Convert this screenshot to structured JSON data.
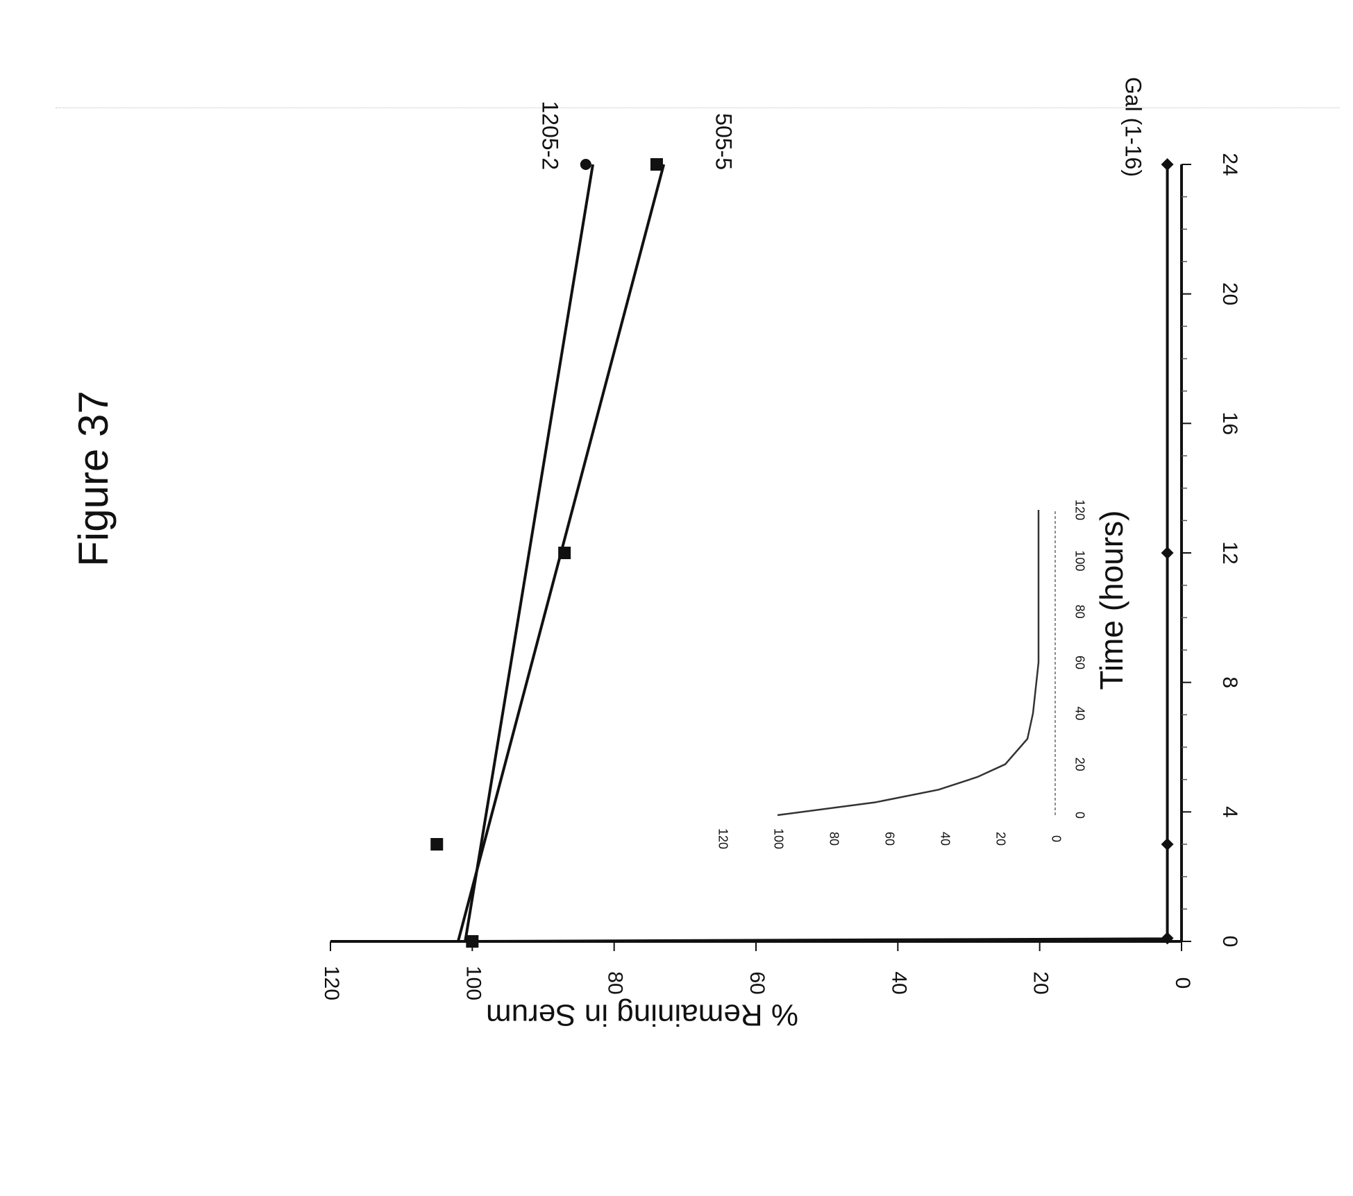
{
  "figure": {
    "title": "Figure 37"
  },
  "chart_data": [
    {
      "type": "line",
      "title": "",
      "xlabel": "Time (hours)",
      "ylabel": "% Remaining in Serum",
      "xlim": [
        0,
        24
      ],
      "ylim": [
        0,
        120
      ],
      "xticks": [
        0,
        4,
        8,
        12,
        16,
        20,
        24
      ],
      "yticks": [
        0,
        20,
        40,
        60,
        80,
        100,
        120
      ],
      "grid": false,
      "orientation": "rotated-90-clockwise",
      "series": [
        {
          "name": "1205-2",
          "marker": "circle",
          "color": "#111111",
          "points": [
            [
              0,
              100
            ],
            [
              3,
              105
            ],
            [
              12,
              87
            ],
            [
              24,
              84
            ]
          ],
          "fit": [
            [
              0,
              101
            ],
            [
              24,
              83
            ]
          ]
        },
        {
          "name": "505-5",
          "marker": "square",
          "color": "#111111",
          "points": [
            [
              0,
              100
            ],
            [
              3,
              105
            ],
            [
              12,
              87
            ],
            [
              24,
              74
            ]
          ],
          "fit": [
            [
              0,
              102
            ],
            [
              24,
              73
            ]
          ]
        },
        {
          "name": "Gal (1-16)",
          "marker": "diamond",
          "color": "#111111",
          "points": [
            [
              0,
              100
            ],
            [
              0.1,
              2
            ],
            [
              3,
              2
            ],
            [
              12,
              2
            ],
            [
              24,
              2
            ]
          ],
          "fit": [
            [
              0,
              100
            ],
            [
              0.08,
              2
            ],
            [
              24,
              2
            ]
          ]
        }
      ]
    },
    {
      "type": "line",
      "title": "",
      "role": "inset",
      "xlim": [
        0,
        120
      ],
      "ylim": [
        0,
        120
      ],
      "xticks": [
        0,
        20,
        40,
        60,
        80,
        100,
        120
      ],
      "yticks": [
        0,
        20,
        40,
        60,
        80,
        100,
        120
      ],
      "series": [
        {
          "name": "",
          "color": "#333333",
          "x": [
            0,
            5,
            10,
            15,
            20,
            30,
            40,
            50,
            60,
            80,
            100,
            120
          ],
          "y": [
            100,
            65,
            42,
            28,
            18,
            10,
            8,
            7,
            6,
            6,
            6,
            6
          ]
        }
      ]
    }
  ]
}
